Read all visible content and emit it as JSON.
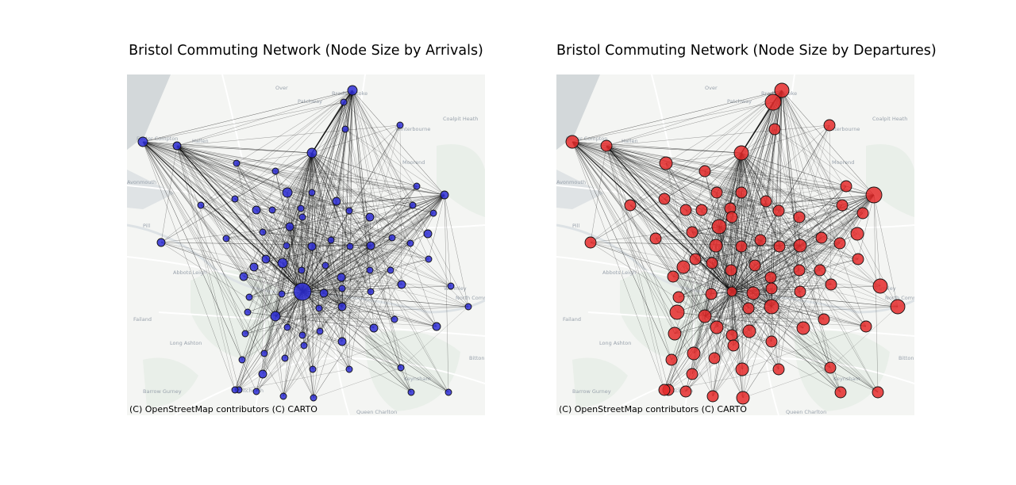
{
  "figure": {
    "panels": [
      {
        "title": "Bristol Commuting Network (Node Size by Arrivals)",
        "node_metric": "arrivals",
        "node_color": "#2f2fd6",
        "attribution": "(C) OpenStreetMap contributors (C) CARTO"
      },
      {
        "title": "Bristol Commuting Network (Node Size by Departures)",
        "node_metric": "departures",
        "node_color": "#e52b2b",
        "attribution": "(C) OpenStreetMap contributors (C) CARTO"
      }
    ]
  },
  "basemap": {
    "place_labels": [
      "Over",
      "Patchway",
      "Bradley Stoke",
      "Coalpit Heath",
      "Easter Compton",
      "Hallen",
      "Winterbourne",
      "Moorend",
      "Avonmouth",
      "Pill",
      "Abbots Leigh",
      "Failand",
      "Long Ashton",
      "Barrow Gurney",
      "Whitchurch",
      "Queen Charlton",
      "Keynsham",
      "Bitton",
      "North Common",
      "Warmley"
    ],
    "colors": {
      "land": "#f4f5f3",
      "water": "#d3d8da",
      "green": "#e6ede6",
      "road": "#ffffff"
    }
  },
  "edge_color": "#000000"
}
